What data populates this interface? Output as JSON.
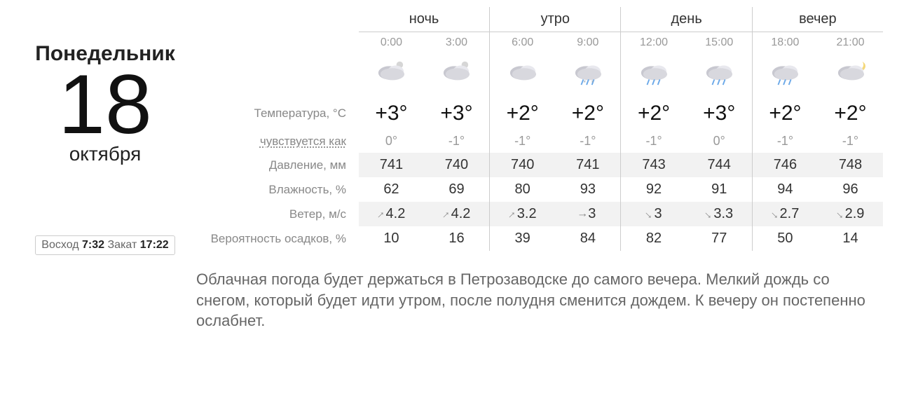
{
  "date": {
    "weekday": "Понедельник",
    "day": "18",
    "month": "октября"
  },
  "sun": {
    "riseLabel": "Восход",
    "rise": "7:32",
    "setLabel": "Закат",
    "set": "17:22"
  },
  "periods": [
    "ночь",
    "утро",
    "день",
    "вечер"
  ],
  "times": [
    "0:00",
    "3:00",
    "6:00",
    "9:00",
    "12:00",
    "15:00",
    "18:00",
    "21:00"
  ],
  "rows": {
    "tempLabel": "Температура, °C",
    "feelsLabel": "чувствуется как",
    "pressureLabel": "Давление, мм",
    "humidityLabel": "Влажность, %",
    "windLabel": "Ветер, м/с",
    "precipLabel": "Вероятность осадков, %"
  },
  "forecast": {
    "temp": [
      "+3°",
      "+3°",
      "+2°",
      "+2°",
      "+2°",
      "+3°",
      "+2°",
      "+2°"
    ],
    "feels": [
      "0°",
      "-1°",
      "-1°",
      "-1°",
      "-1°",
      "0°",
      "-1°",
      "-1°"
    ],
    "pressure": [
      "741",
      "740",
      "740",
      "741",
      "743",
      "744",
      "746",
      "748"
    ],
    "humidity": [
      "62",
      "69",
      "80",
      "93",
      "92",
      "91",
      "94",
      "96"
    ],
    "wind": [
      {
        "dir": "ne",
        "v": "4.2"
      },
      {
        "dir": "ne",
        "v": "4.2"
      },
      {
        "dir": "ne",
        "v": "3.2"
      },
      {
        "dir": "e",
        "v": "3"
      },
      {
        "dir": "se",
        "v": "3"
      },
      {
        "dir": "se",
        "v": "3.3"
      },
      {
        "dir": "se",
        "v": "2.7"
      },
      {
        "dir": "se",
        "v": "2.9"
      }
    ],
    "precip": [
      "10",
      "16",
      "39",
      "84",
      "82",
      "77",
      "50",
      "14"
    ],
    "icons": [
      "cloud-night",
      "cloud-night",
      "cloud",
      "sleet",
      "rain",
      "rain",
      "rain-night",
      "moon-cloud"
    ]
  },
  "summary": "Облачная погода будет держаться в Петрозаводске до самого вечера. Мелкий дождь со снегом, который будет идти утром, после полудня сменится дождем. К вечеру он постепенно ослабнет.",
  "colors": {
    "text": "#333",
    "muted": "#888",
    "light": "#999",
    "shade": "#f2f2f2",
    "border": "#ccc"
  }
}
